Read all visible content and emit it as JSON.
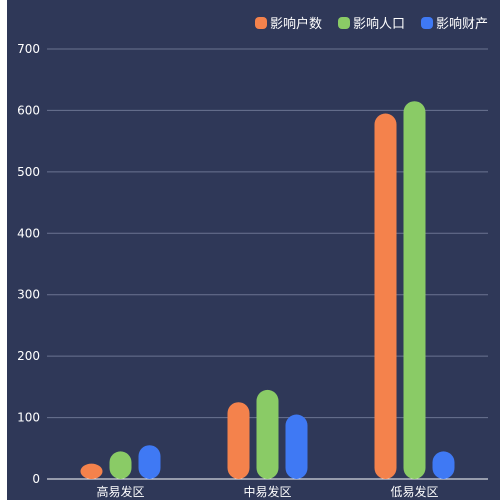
{
  "chart_data": {
    "type": "bar",
    "categories": [
      "高易发区",
      "中易发区",
      "低易发区"
    ],
    "series": [
      {
        "name": "影响户数",
        "values": [
          25,
          125,
          595
        ],
        "color": "#f4824c"
      },
      {
        "name": "影响人口",
        "values": [
          45,
          145,
          615
        ],
        "color": "#8acb66"
      },
      {
        "name": "影响财产",
        "values": [
          55,
          105,
          45
        ],
        "color": "#3f79f4"
      }
    ],
    "ylim": [
      0,
      700
    ],
    "yticks": [
      0,
      100,
      200,
      300,
      400,
      500,
      600,
      700
    ],
    "grid": true,
    "legend_position": "top-right"
  }
}
